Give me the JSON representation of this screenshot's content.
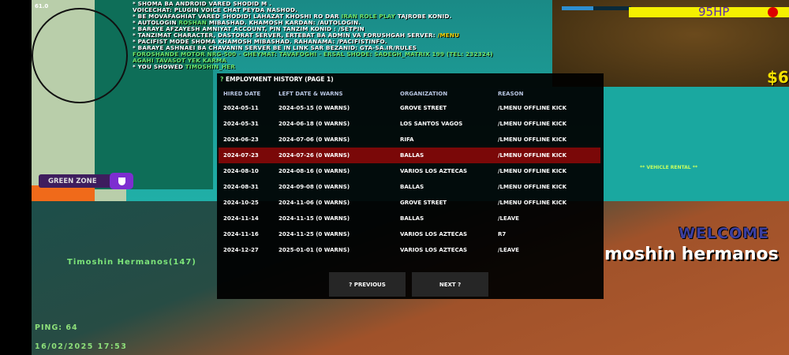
{
  "hud": {
    "fps": "61.0",
    "health_text": "95HP",
    "money_text": "$6",
    "ping": "PING: 64",
    "datetime": "16/02/2025 17:53",
    "zone_label": "GREEN ZONE",
    "player_tag": "Timoshin Hermanos(147)",
    "vehicle_rental": "** VEHICLE RENTAL **",
    "welcome": "WELCOME",
    "welcome_name": "moshin hermanos",
    "armor_fraction": 0.45,
    "colors": {
      "health": "#f5f000",
      "zone": "#5a1f8a",
      "highlight": "#7a0808",
      "chat_green": "#6ee66e"
    }
  },
  "chat": [
    {
      "parts": [
        {
          "t": "* SHOMA BA ANDROID VARED SHODID  M ."
        }
      ]
    },
    {
      "parts": [
        {
          "t": "  VOICECHAT: PLUGIN VOICE CHAT PEYDA NASHOD."
        }
      ]
    },
    {
      "parts": [
        {
          "t": "* BE MOVAFAGHIAT VARED SHODID! LAHAZAT KHOSHI RO DAR "
        },
        {
          "t": "IRAN ROLE PLAY",
          "c": "g"
        },
        {
          "t": " TAJROBE KONID."
        }
      ]
    },
    {
      "parts": [
        {
          "t": "* AUTOLOGIN "
        },
        {
          "t": "ROSHAN",
          "c": "g"
        },
        {
          "t": " MIBASHAD. KHAMOSH KARDAN: /AUTOLOGIN."
        }
      ]
    },
    {
      "parts": [
        {
          "t": "* BARAYE AFZAYESH AMNIYAT ACCOUNT, PIN TANZIM KONID : /SETPIN"
        }
      ]
    },
    {
      "parts": [
        {
          "t": "* TANZIMAT CHARACTER, DASTORAT SERVER, ERTEBAT BA ADMIN VA FORUSHGAH SERVER: "
        },
        {
          "t": "/MENU",
          "c": "y"
        }
      ]
    },
    {
      "parts": [
        {
          "t": "* PACIFIST MODE SHOMA KHAMOSH MIBASHAD. RAHANAMA: /PACIFISTINFO."
        }
      ]
    },
    {
      "parts": [
        {
          "t": "* BARAYE ASHNAEI BA CHAVANIN SERVER BE IN LINK SAR BEZANID: GTA-SA.IR/RULES"
        }
      ]
    },
    {
      "parts": [
        {
          "t": "FOROSHANDE MOTOR  NRG-500 - GHEYMAT: TAVAFOGHI - ERSAL SHODE: SADEGH_MATRIX  199  (TEL: 232324)",
          "c": "g"
        }
      ]
    },
    {
      "parts": [
        {
          "t": "  AGAHI TAVASOT YEK KARMA",
          "c": "g"
        }
      ]
    },
    {
      "parts": [
        {
          "t": "* YOU SHOWED "
        },
        {
          "t": "TIMOSHIN_HER",
          "c": "g"
        }
      ]
    }
  ],
  "dialog": {
    "title_icon": "?",
    "title": "EMPLOYMENT HISTORY (PAGE 1)",
    "columns": [
      "HIRED DATE",
      "LEFT DATE & WARNS",
      "ORGANIZATION",
      "REASON"
    ],
    "rows": [
      [
        "2024-05-11",
        "2024-05-15 (0 WARNS)",
        "GROVE STREET",
        "/LMENU OFFLINE KICK"
      ],
      [
        "2024-05-31",
        "2024-06-18 (0 WARNS)",
        "LOS SANTOS VAGOS",
        "/LMENU OFFLINE KICK"
      ],
      [
        "2024-06-23",
        "2024-07-06 (0 WARNS)",
        "RIFA",
        "/LMENU OFFLINE KICK"
      ],
      [
        "2024-07-23",
        "2024-07-26 (0 WARNS)",
        "BALLAS",
        "/LMENU OFFLINE KICK"
      ],
      [
        "2024-08-10",
        "2024-08-16 (0 WARNS)",
        "VARIOS LOS AZTECAS",
        "/LMENU OFFLINE KICK"
      ],
      [
        "2024-08-31",
        "2024-09-08 (0 WARNS)",
        "BALLAS",
        "/LMENU OFFLINE KICK"
      ],
      [
        "2024-10-25",
        "2024-11-06 (0 WARNS)",
        "GROVE STREET",
        "/LMENU OFFLINE KICK"
      ],
      [
        "2024-11-14",
        "2024-11-15 (0 WARNS)",
        "BALLAS",
        "/LEAVE"
      ],
      [
        "2024-11-16",
        "2024-11-25 (0 WARNS)",
        "VARIOS LOS AZTECAS",
        "R7"
      ],
      [
        "2024-12-27",
        "2025-01-01 (0 WARNS)",
        "VARIOS LOS AZTECAS",
        "/LEAVE"
      ]
    ],
    "selected_row": 3,
    "previous_label": "? PREVIOUS",
    "next_label": "NEXT ?"
  }
}
